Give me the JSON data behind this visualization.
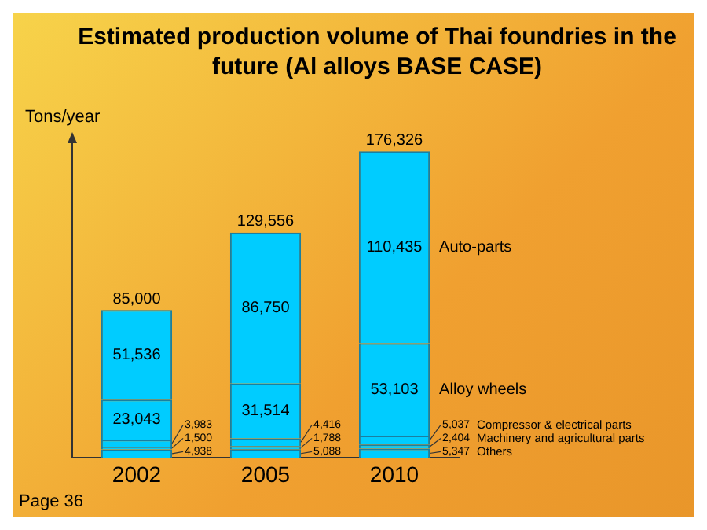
{
  "chart_data": {
    "type": "bar",
    "title": "Estimated production volume of Thai foundries in the future (Al alloys BASE CASE)",
    "ylabel": "Tons/year",
    "categories": [
      "2002",
      "2005",
      "2010"
    ],
    "stacked": true,
    "legend": false,
    "grid": false,
    "tick_labels": "x",
    "series": [
      {
        "name": "Others",
        "color": "#00ccff",
        "values": [
          4938,
          5088,
          5347
        ],
        "value_labels": [
          "4,938",
          "5,088",
          "5,347"
        ]
      },
      {
        "name": "Machinery and agricultural parts",
        "color": "#00ccff",
        "values": [
          1500,
          1788,
          2404
        ],
        "value_labels": [
          "1,500",
          "1,788",
          "2,404"
        ]
      },
      {
        "name": "Compressor & electrical parts",
        "color": "#00ccff",
        "values": [
          3983,
          4416,
          5037
        ],
        "value_labels": [
          "3,983",
          "4,416",
          "5,037"
        ]
      },
      {
        "name": "Alloy wheels",
        "color": "#00ccff",
        "values": [
          23043,
          31514,
          53103
        ],
        "value_labels": [
          "23,043",
          "31,514",
          "53,103"
        ]
      },
      {
        "name": "Auto-parts",
        "color": "#00ccff",
        "values": [
          51536,
          86750,
          110435
        ],
        "value_labels": [
          "51,536",
          "86,750",
          "110,435"
        ]
      }
    ],
    "totals": [
      "85,000",
      "129,556",
      "176,326"
    ],
    "annotations": [
      "Page 36"
    ]
  }
}
